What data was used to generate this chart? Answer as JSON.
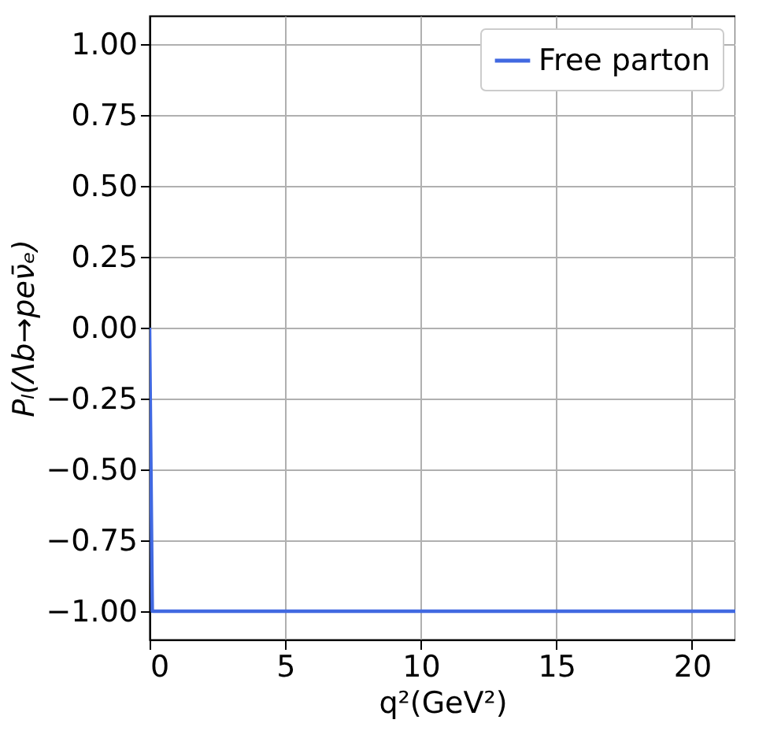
{
  "chart_data": {
    "type": "line",
    "xlabel": "q²(GeV²)",
    "ylabel": "Pₗ(Λb→peν̄ₑ)",
    "series": [
      {
        "name": "Free parton",
        "color": "#4169e1",
        "x": [
          0,
          0.05,
          0.1,
          21.6
        ],
        "values": [
          0.0,
          -0.5,
          -1.0,
          -1.0
        ]
      }
    ],
    "xlim": [
      0,
      21.6
    ],
    "xticks": [
      0,
      5,
      10,
      15,
      20
    ],
    "ylim": [
      -1.1,
      1.1
    ],
    "yticks": [
      {
        "value": -1.0,
        "label": "−1.00"
      },
      {
        "value": -0.75,
        "label": "−0.75"
      },
      {
        "value": -0.5,
        "label": "−0.50"
      },
      {
        "value": -0.25,
        "label": "−0.25"
      },
      {
        "value": 0.0,
        "label": "0.00"
      },
      {
        "value": 0.25,
        "label": "0.25"
      },
      {
        "value": 0.5,
        "label": "0.50"
      },
      {
        "value": 0.75,
        "label": "0.75"
      },
      {
        "value": 1.0,
        "label": "1.00"
      }
    ],
    "grid": true,
    "legend": "top right",
    "marker": "none",
    "line_style": "solid"
  }
}
